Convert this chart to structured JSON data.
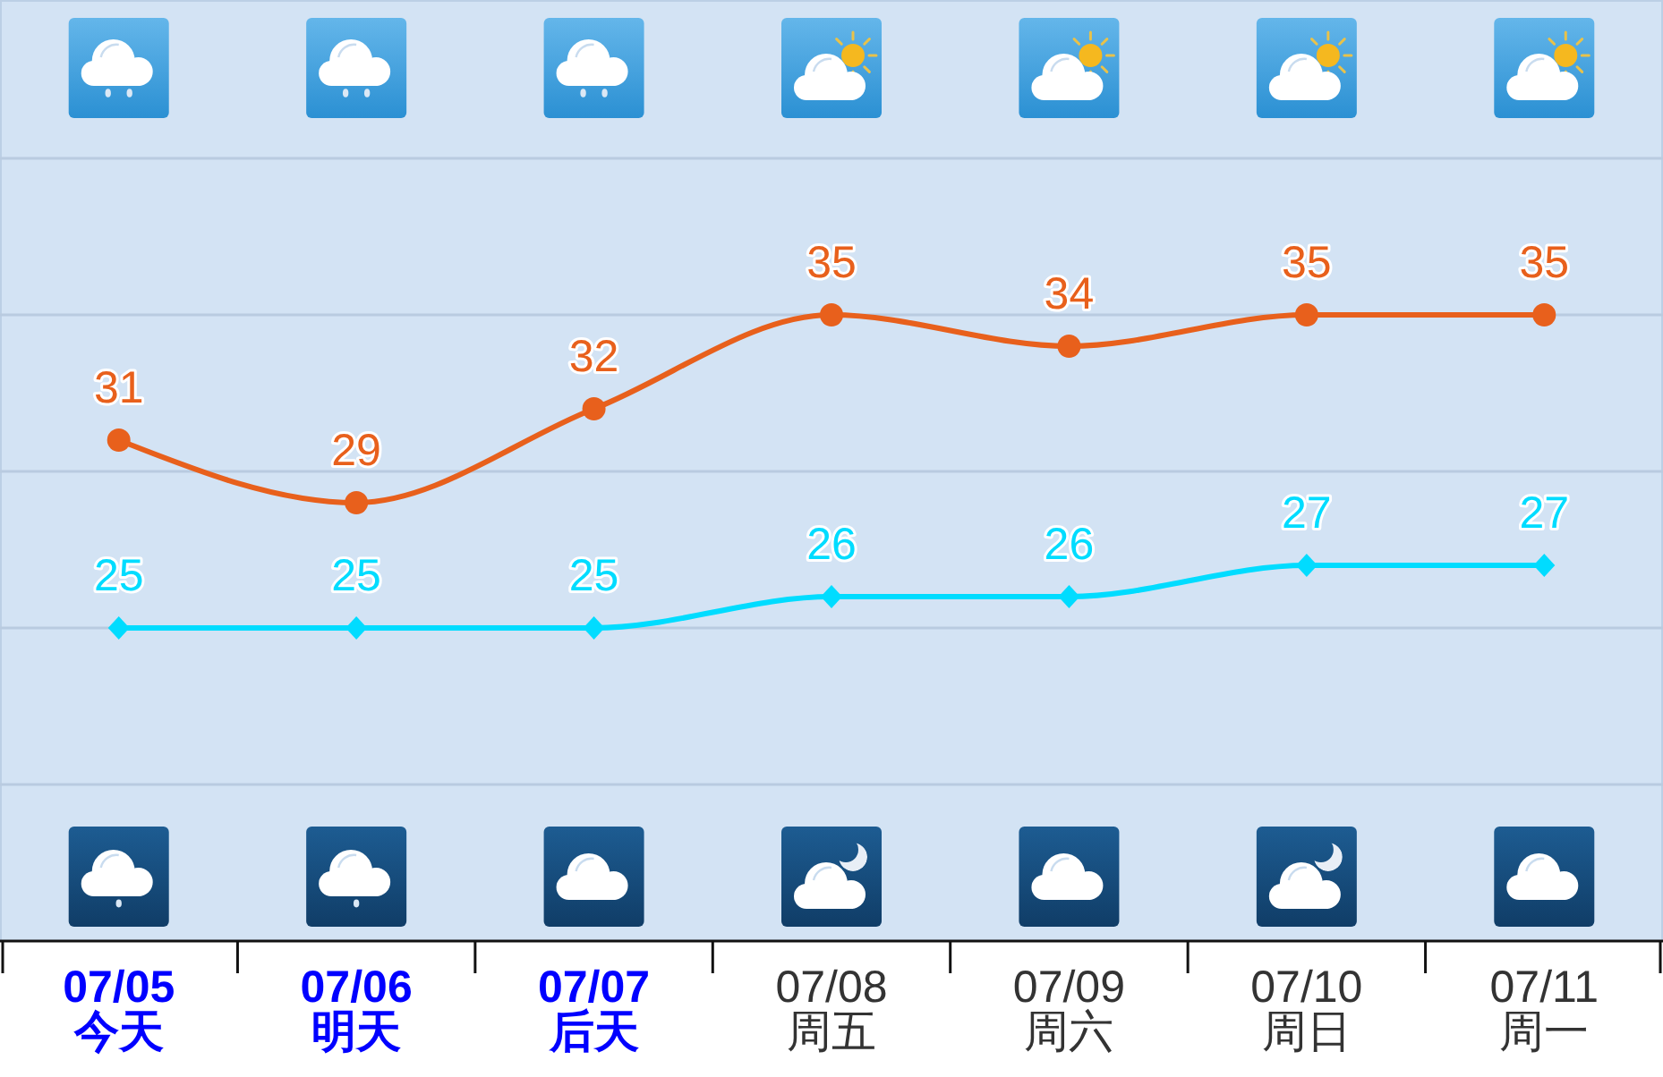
{
  "chart_data": {
    "type": "line",
    "categories": [
      "07/05\n今天",
      "07/06\n明天",
      "07/07\n后天",
      "07/08\n周五",
      "07/09\n周六",
      "07/10\n周日",
      "07/11\n周一"
    ],
    "series": [
      {
        "color": "#e8601c",
        "marker": "circle",
        "values": [
          31,
          29,
          32,
          35,
          34,
          35,
          35
        ]
      },
      {
        "color": "#00dcff",
        "marker": "diamond",
        "values": [
          25,
          25,
          25,
          26,
          26,
          27,
          27
        ]
      }
    ],
    "ylim": [
      15,
      45
    ],
    "yticks": [
      {
        "value": 20,
        "label": null
      },
      {
        "value": 25,
        "label": null
      },
      {
        "value": 30,
        "label": null
      },
      {
        "value": 35,
        "label": null
      },
      {
        "value": 40,
        "label": null
      }
    ],
    "grid": "y",
    "tick_labels": "x",
    "data_labels": true
  }
}
